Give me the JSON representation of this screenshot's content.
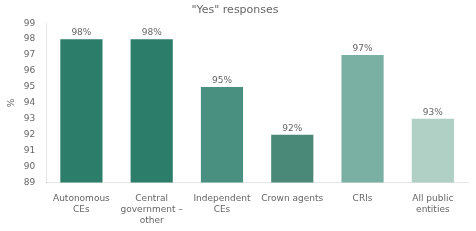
{
  "chart_data": {
    "type": "bar",
    "title": "\"Yes\" responses",
    "categories": [
      "Autonomous\nCEs",
      "Central\ngovernment –\nother",
      "Independent\nCEs",
      "Crown agents",
      "CRIs",
      "All public\nentities"
    ],
    "values": [
      98,
      98,
      95,
      92,
      97,
      93
    ],
    "value_labels": [
      "98%",
      "98%",
      "95%",
      "92%",
      "97%",
      "93%"
    ],
    "colors": [
      "#2d7d6b",
      "#2d7d6b",
      "#4a9080",
      "#4a8878",
      "#7ab0a3",
      "#b0d0c5"
    ],
    "ylabel": "%",
    "ylim": [
      89,
      99
    ],
    "yticks": [
      89,
      90,
      91,
      92,
      93,
      94,
      95,
      96,
      97,
      98,
      99
    ],
    "grid": false,
    "data_labels": true
  }
}
